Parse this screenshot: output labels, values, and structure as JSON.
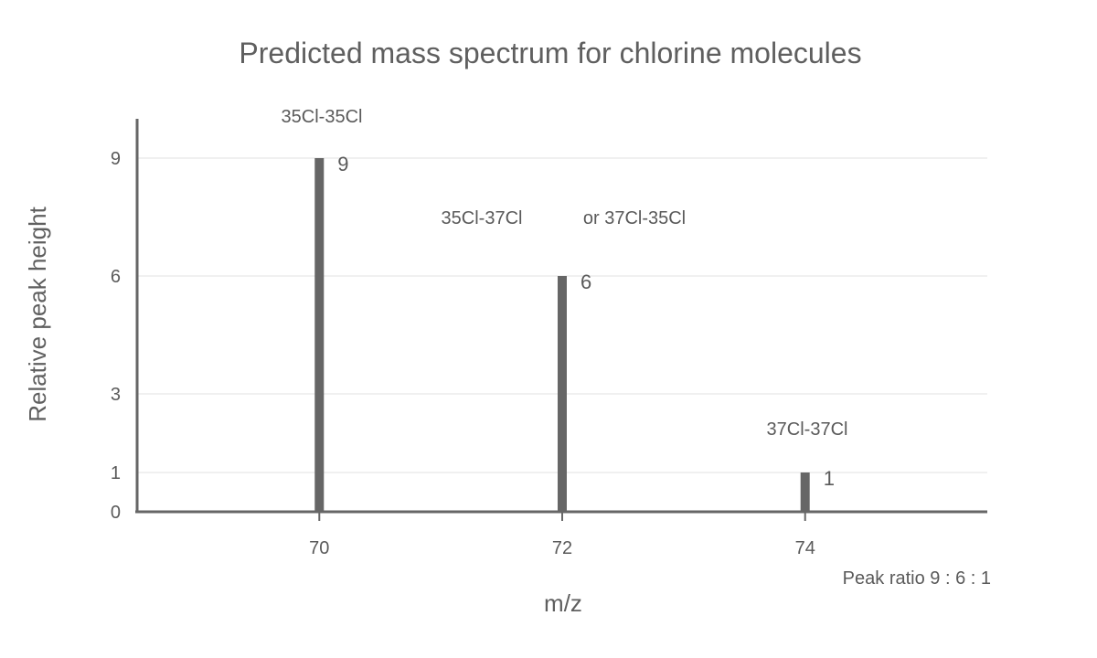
{
  "chart_data": {
    "type": "bar",
    "title": "Predicted mass spectrum for chlorine molecules",
    "xlabel": "m/z",
    "ylabel": "Relative peak height",
    "x": [
      70,
      72,
      74
    ],
    "values": [
      9,
      6,
      1
    ],
    "xlim": [
      68.5,
      75.5
    ],
    "ylim": [
      0,
      10
    ],
    "x_ticks": [
      "70",
      "72",
      "74"
    ],
    "y_ticks": [
      "0",
      "1",
      "3",
      "6",
      "9"
    ],
    "data_labels": [
      "9",
      "6",
      "1"
    ],
    "grid": true,
    "annotations": {
      "peak_70": "35Cl-35Cl",
      "peak_72_a": "35Cl-37Cl",
      "peak_72_b": "or 37Cl-35Cl",
      "peak_74": "37Cl-37Cl",
      "ratio_note": "Peak ratio 9 : 6 : 1"
    },
    "colors": {
      "bar": "#666666",
      "axis": "#666666",
      "grid": "#e0e0e0",
      "text": "#5a5a5a"
    }
  }
}
